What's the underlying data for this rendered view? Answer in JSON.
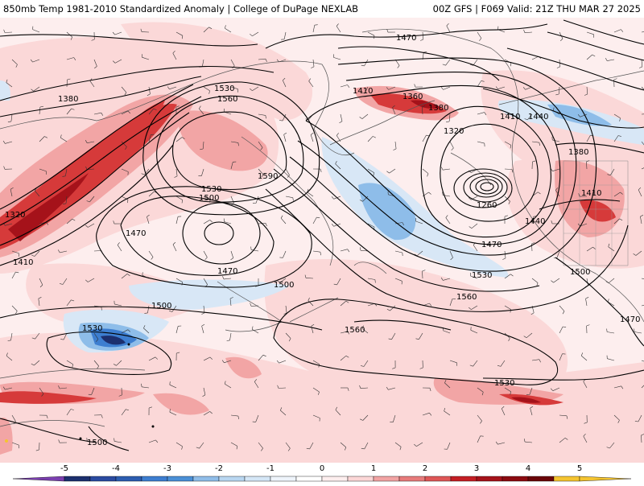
{
  "header": {
    "title_left": "850mb Temp 1981-2010 Standardized Anomaly | College of DuPage NEXLAB",
    "title_right": "00Z GFS | F069 Valid: 21Z THU MAR 27 2025"
  },
  "contour_labels": [
    {
      "id": "c1",
      "text": "1470"
    },
    {
      "id": "c2",
      "text": "1380"
    },
    {
      "id": "c3",
      "text": "1530"
    },
    {
      "id": "c4",
      "text": "1560"
    },
    {
      "id": "c5",
      "text": "1590"
    },
    {
      "id": "c6",
      "text": "1530"
    },
    {
      "id": "c7",
      "text": "1500"
    },
    {
      "id": "c8",
      "text": "1320"
    },
    {
      "id": "c9",
      "text": "1470"
    },
    {
      "id": "c10",
      "text": "1410"
    },
    {
      "id": "c11",
      "text": "1470"
    },
    {
      "id": "c12",
      "text": "1500"
    },
    {
      "id": "c13",
      "text": "1500"
    },
    {
      "id": "c14",
      "text": "1530"
    },
    {
      "id": "c15",
      "text": "1410"
    },
    {
      "id": "c16",
      "text": "1360"
    },
    {
      "id": "c17",
      "text": "1380"
    },
    {
      "id": "c18",
      "text": "1320"
    },
    {
      "id": "c19",
      "text": "1260"
    },
    {
      "id": "c20",
      "text": "1440"
    },
    {
      "id": "c21",
      "text": "1470"
    },
    {
      "id": "c22",
      "text": "1530"
    },
    {
      "id": "c23",
      "text": "1560"
    },
    {
      "id": "c24",
      "text": "1560"
    },
    {
      "id": "c25",
      "text": "1410"
    },
    {
      "id": "c26",
      "text": "1440"
    },
    {
      "id": "c27",
      "text": "1380"
    },
    {
      "id": "c28",
      "text": "1410"
    },
    {
      "id": "c29",
      "text": "1500"
    },
    {
      "id": "c30",
      "text": "1470"
    },
    {
      "id": "c31",
      "text": "1530"
    },
    {
      "id": "c32",
      "text": "1500"
    }
  ],
  "colorbar": {
    "ticks": [
      "-5",
      "-4",
      "-3",
      "-2",
      "-1",
      "0",
      "1",
      "2",
      "3",
      "4",
      "5"
    ],
    "colors": [
      "#7b3fb0",
      "#1c2f6e",
      "#2c5db0",
      "#4a8fd6",
      "#8fbde8",
      "#d4e6f6",
      "#ffffff",
      "#fbd6d6",
      "#f1a3a3",
      "#de5656",
      "#c41e24",
      "#8b0a10",
      "#f4c430"
    ]
  },
  "colors": {
    "contour": "#000000",
    "coastline": "#555555",
    "warm_light": "#fbdada",
    "warm_mid": "#f3a8a8",
    "warm_strong": "#d93a3a",
    "warm_extreme": "#a5121a",
    "cold_light": "#d6e6f6",
    "cold_mid": "#8ebde9",
    "cold_strong": "#3d7ed0",
    "cold_extreme": "#1c2f6e"
  }
}
